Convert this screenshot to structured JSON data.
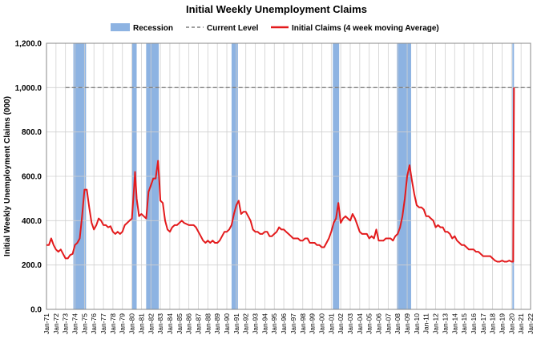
{
  "chart_data": {
    "type": "line",
    "title": "Initial Weekly Unemployment Claims",
    "y_label": "Initial Weekly Unemployment Claims (000)",
    "ylim": [
      0,
      1200
    ],
    "yticks": [
      {
        "value": 0,
        "label": "0.0"
      },
      {
        "value": 200,
        "label": "200.0"
      },
      {
        "value": 400,
        "label": "400.0"
      },
      {
        "value": 600,
        "label": "600.0"
      },
      {
        "value": 800,
        "label": "800.0"
      },
      {
        "value": 1000,
        "label": "1,000.0"
      },
      {
        "value": 1200,
        "label": "1,200.0"
      }
    ],
    "xlim": [
      "Jan-71",
      "Jan-22"
    ],
    "xticks": [
      "Jan-71",
      "Jan-72",
      "Jan-73",
      "Jan-74",
      "Jan-75",
      "Jan-76",
      "Jan-77",
      "Jan-78",
      "Jan-79",
      "Jan-80",
      "Jan-81",
      "Jan-82",
      "Jan-83",
      "Jan-84",
      "Jan-85",
      "Jan-86",
      "Jan-87",
      "Jan-88",
      "Jan-89",
      "Jan-90",
      "Jan-91",
      "Jan-92",
      "Jan-93",
      "Jan-94",
      "Jan-95",
      "Jan-96",
      "Jan-97",
      "Jan-98",
      "Jan-99",
      "Jan-00",
      "Jan-01",
      "Jan-02",
      "Jan-03",
      "Jan-04",
      "Jan-05",
      "Jan-06",
      "Jan-07",
      "Jan-08",
      "Jan-09",
      "Jan-10",
      "Jan-11",
      "Jan-12",
      "Jan-13",
      "Jan-14",
      "Jan-15",
      "Jan-16",
      "Jan-17",
      "Jan-18",
      "Jan-19",
      "Jan-20",
      "Jan-21",
      "Jan-22"
    ],
    "grid": true,
    "recessions": {
      "name": "Recession",
      "color": "#8db3e2",
      "periods": [
        [
          "Nov-73",
          "Mar-75"
        ],
        [
          "Jan-80",
          "Jul-80"
        ],
        [
          "Jul-81",
          "Nov-82"
        ],
        [
          "Jul-90",
          "Mar-91"
        ],
        [
          "Mar-01",
          "Nov-01"
        ],
        [
          "Dec-07",
          "Jun-09"
        ],
        [
          "Feb-20",
          "Apr-20"
        ]
      ]
    },
    "series": [
      {
        "name": "Current Level",
        "color": "#7f7f7f",
        "dash": true,
        "x": [
          "Jan-73",
          "Jan-22"
        ],
        "values": [
          1000,
          1000
        ]
      },
      {
        "name": "Initial Claims (4 week moving Average)",
        "color": "#e31a1c",
        "x": [
          "Jan-71",
          "Apr-71",
          "Jul-71",
          "Oct-71",
          "Jan-72",
          "Apr-72",
          "Jul-72",
          "Oct-72",
          "Jan-73",
          "Apr-73",
          "Jul-73",
          "Oct-73",
          "Jan-74",
          "Apr-74",
          "Jul-74",
          "Oct-74",
          "Jan-75",
          "Apr-75",
          "Jul-75",
          "Oct-75",
          "Jan-76",
          "Apr-76",
          "Jul-76",
          "Oct-76",
          "Jan-77",
          "Apr-77",
          "Jul-77",
          "Oct-77",
          "Jan-78",
          "Apr-78",
          "Jul-78",
          "Oct-78",
          "Jan-79",
          "Apr-79",
          "Jul-79",
          "Oct-79",
          "Jan-80",
          "Apr-80",
          "May-80",
          "Jul-80",
          "Oct-80",
          "Jan-81",
          "Apr-81",
          "Jul-81",
          "Oct-81",
          "Jan-82",
          "Apr-82",
          "Jul-82",
          "Oct-82",
          "Dec-82",
          "Jan-83",
          "Apr-83",
          "Jul-83",
          "Oct-83",
          "Jan-84",
          "Apr-84",
          "Jul-84",
          "Oct-84",
          "Jan-85",
          "Apr-85",
          "Jul-85",
          "Oct-85",
          "Jan-86",
          "Apr-86",
          "Jul-86",
          "Oct-86",
          "Jan-87",
          "Apr-87",
          "Jul-87",
          "Oct-87",
          "Jan-88",
          "Apr-88",
          "Jul-88",
          "Oct-88",
          "Jan-89",
          "Apr-89",
          "Jul-89",
          "Oct-89",
          "Jan-90",
          "Apr-90",
          "Jul-90",
          "Oct-90",
          "Jan-91",
          "Apr-91",
          "Jul-91",
          "Oct-91",
          "Jan-92",
          "Apr-92",
          "Jul-92",
          "Oct-92",
          "Jan-93",
          "Apr-93",
          "Jul-93",
          "Oct-93",
          "Jan-94",
          "Apr-94",
          "Jul-94",
          "Oct-94",
          "Jan-95",
          "Apr-95",
          "Jul-95",
          "Oct-95",
          "Jan-96",
          "Apr-96",
          "Jul-96",
          "Oct-96",
          "Jan-97",
          "Apr-97",
          "Jul-97",
          "Oct-97",
          "Jan-98",
          "Apr-98",
          "Jul-98",
          "Oct-98",
          "Jan-99",
          "Apr-99",
          "Jul-99",
          "Oct-99",
          "Jan-00",
          "Apr-00",
          "Jul-00",
          "Oct-00",
          "Jan-01",
          "Apr-01",
          "Jul-01",
          "Oct-01",
          "Jan-02",
          "Apr-02",
          "Jul-02",
          "Oct-02",
          "Jan-03",
          "Apr-03",
          "Jul-03",
          "Oct-03",
          "Jan-04",
          "Apr-04",
          "Jul-04",
          "Oct-04",
          "Jan-05",
          "Apr-05",
          "Jul-05",
          "Oct-05",
          "Jan-06",
          "Apr-06",
          "Jul-06",
          "Oct-06",
          "Jan-07",
          "Apr-07",
          "Jul-07",
          "Oct-07",
          "Jan-08",
          "Apr-08",
          "Jul-08",
          "Oct-08",
          "Jan-09",
          "Apr-09",
          "Jul-09",
          "Oct-09",
          "Jan-10",
          "Apr-10",
          "Jul-10",
          "Oct-10",
          "Jan-11",
          "Apr-11",
          "Jul-11",
          "Oct-11",
          "Jan-12",
          "Apr-12",
          "Jul-12",
          "Oct-12",
          "Jan-13",
          "Apr-13",
          "Jul-13",
          "Oct-13",
          "Jan-14",
          "Apr-14",
          "Jul-14",
          "Oct-14",
          "Jan-15",
          "Apr-15",
          "Jul-15",
          "Oct-15",
          "Jan-16",
          "Apr-16",
          "Jul-16",
          "Oct-16",
          "Jan-17",
          "Apr-17",
          "Jul-17",
          "Oct-17",
          "Jan-18",
          "Apr-18",
          "Jul-18",
          "Oct-18",
          "Jan-19",
          "Apr-19",
          "Jul-19",
          "Oct-19",
          "Jan-20",
          "Mar-20",
          "Apr-20"
        ],
        "values": [
          290,
          290,
          320,
          290,
          270,
          260,
          270,
          250,
          230,
          230,
          245,
          250,
          290,
          300,
          320,
          420,
          540,
          540,
          460,
          390,
          360,
          380,
          410,
          400,
          380,
          380,
          370,
          375,
          350,
          340,
          350,
          340,
          350,
          380,
          390,
          400,
          410,
          560,
          620,
          500,
          420,
          430,
          420,
          410,
          530,
          560,
          590,
          590,
          670,
          560,
          490,
          480,
          400,
          360,
          350,
          370,
          380,
          380,
          390,
          400,
          390,
          385,
          380,
          380,
          380,
          370,
          350,
          330,
          310,
          300,
          310,
          300,
          310,
          300,
          300,
          310,
          330,
          350,
          350,
          360,
          380,
          430,
          470,
          490,
          430,
          440,
          440,
          420,
          400,
          360,
          350,
          350,
          340,
          340,
          350,
          350,
          330,
          330,
          340,
          350,
          370,
          360,
          360,
          350,
          340,
          330,
          320,
          320,
          320,
          310,
          310,
          320,
          320,
          300,
          300,
          300,
          290,
          290,
          280,
          280,
          300,
          320,
          350,
          390,
          410,
          480,
          390,
          410,
          420,
          410,
          400,
          430,
          410,
          380,
          350,
          340,
          340,
          340,
          320,
          330,
          320,
          360,
          310,
          310,
          310,
          320,
          320,
          320,
          310,
          330,
          340,
          370,
          420,
          500,
          600,
          650,
          580,
          520,
          470,
          460,
          460,
          450,
          420,
          420,
          410,
          400,
          370,
          380,
          370,
          370,
          350,
          350,
          340,
          320,
          330,
          310,
          300,
          290,
          290,
          280,
          270,
          270,
          270,
          260,
          260,
          250,
          240,
          240,
          240,
          240,
          230,
          220,
          215,
          215,
          220,
          215,
          215,
          220,
          215,
          215,
          1000
        ]
      }
    ]
  }
}
